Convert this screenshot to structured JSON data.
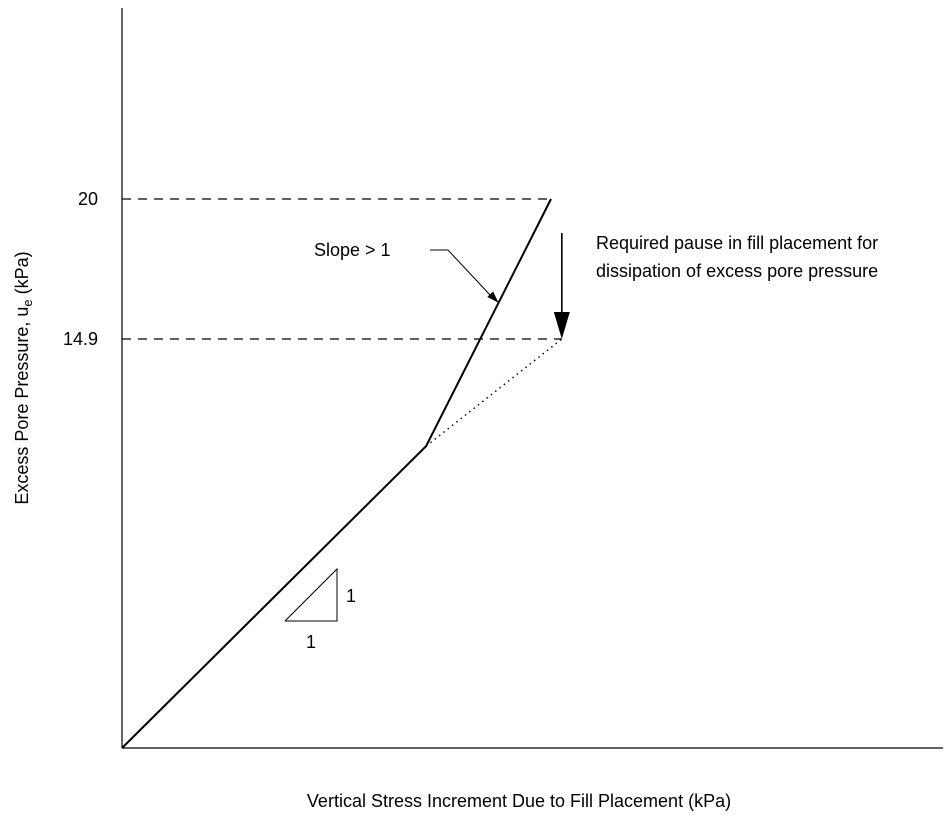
{
  "chart_data": {
    "type": "line",
    "xlabel": "Vertical Stress Increment Due to Fill Placement (kPa)",
    "ylabel": "Excess Pore Pressure, u",
    "ylabel_subscript": "e",
    "ylabel_unit": "(kPa)",
    "yticks": [
      {
        "value": 14.9,
        "label": "14.9"
      },
      {
        "value": 20,
        "label": "20"
      }
    ],
    "ylim": [
      0,
      25.5
    ],
    "xlim": [
      0,
      30
    ],
    "grid": false,
    "series": [
      {
        "style": "solid",
        "points": [
          {
            "x": 0,
            "y": 0
          },
          {
            "x": 11.2,
            "y": 11.0
          },
          {
            "x": 15.8,
            "y": 20.0
          }
        ]
      },
      {
        "style": "dotted",
        "points": [
          {
            "x": 11.2,
            "y": 11.0
          },
          {
            "x": 16.2,
            "y": 14.9
          }
        ]
      }
    ],
    "reference_lines": [
      {
        "style": "dashed",
        "y": 20,
        "x_from": 0,
        "x_to": 15.8
      },
      {
        "style": "dashed",
        "y": 14.9,
        "x_from": 0,
        "x_to": 16.2
      }
    ],
    "slope_triangle": {
      "run_label": "1",
      "rise_label": "1"
    },
    "annotations": {
      "slope_label": "Slope > 1",
      "pause_line1": "Required pause in fill placement for",
      "pause_line2": "dissipation of excess pore pressure"
    }
  }
}
